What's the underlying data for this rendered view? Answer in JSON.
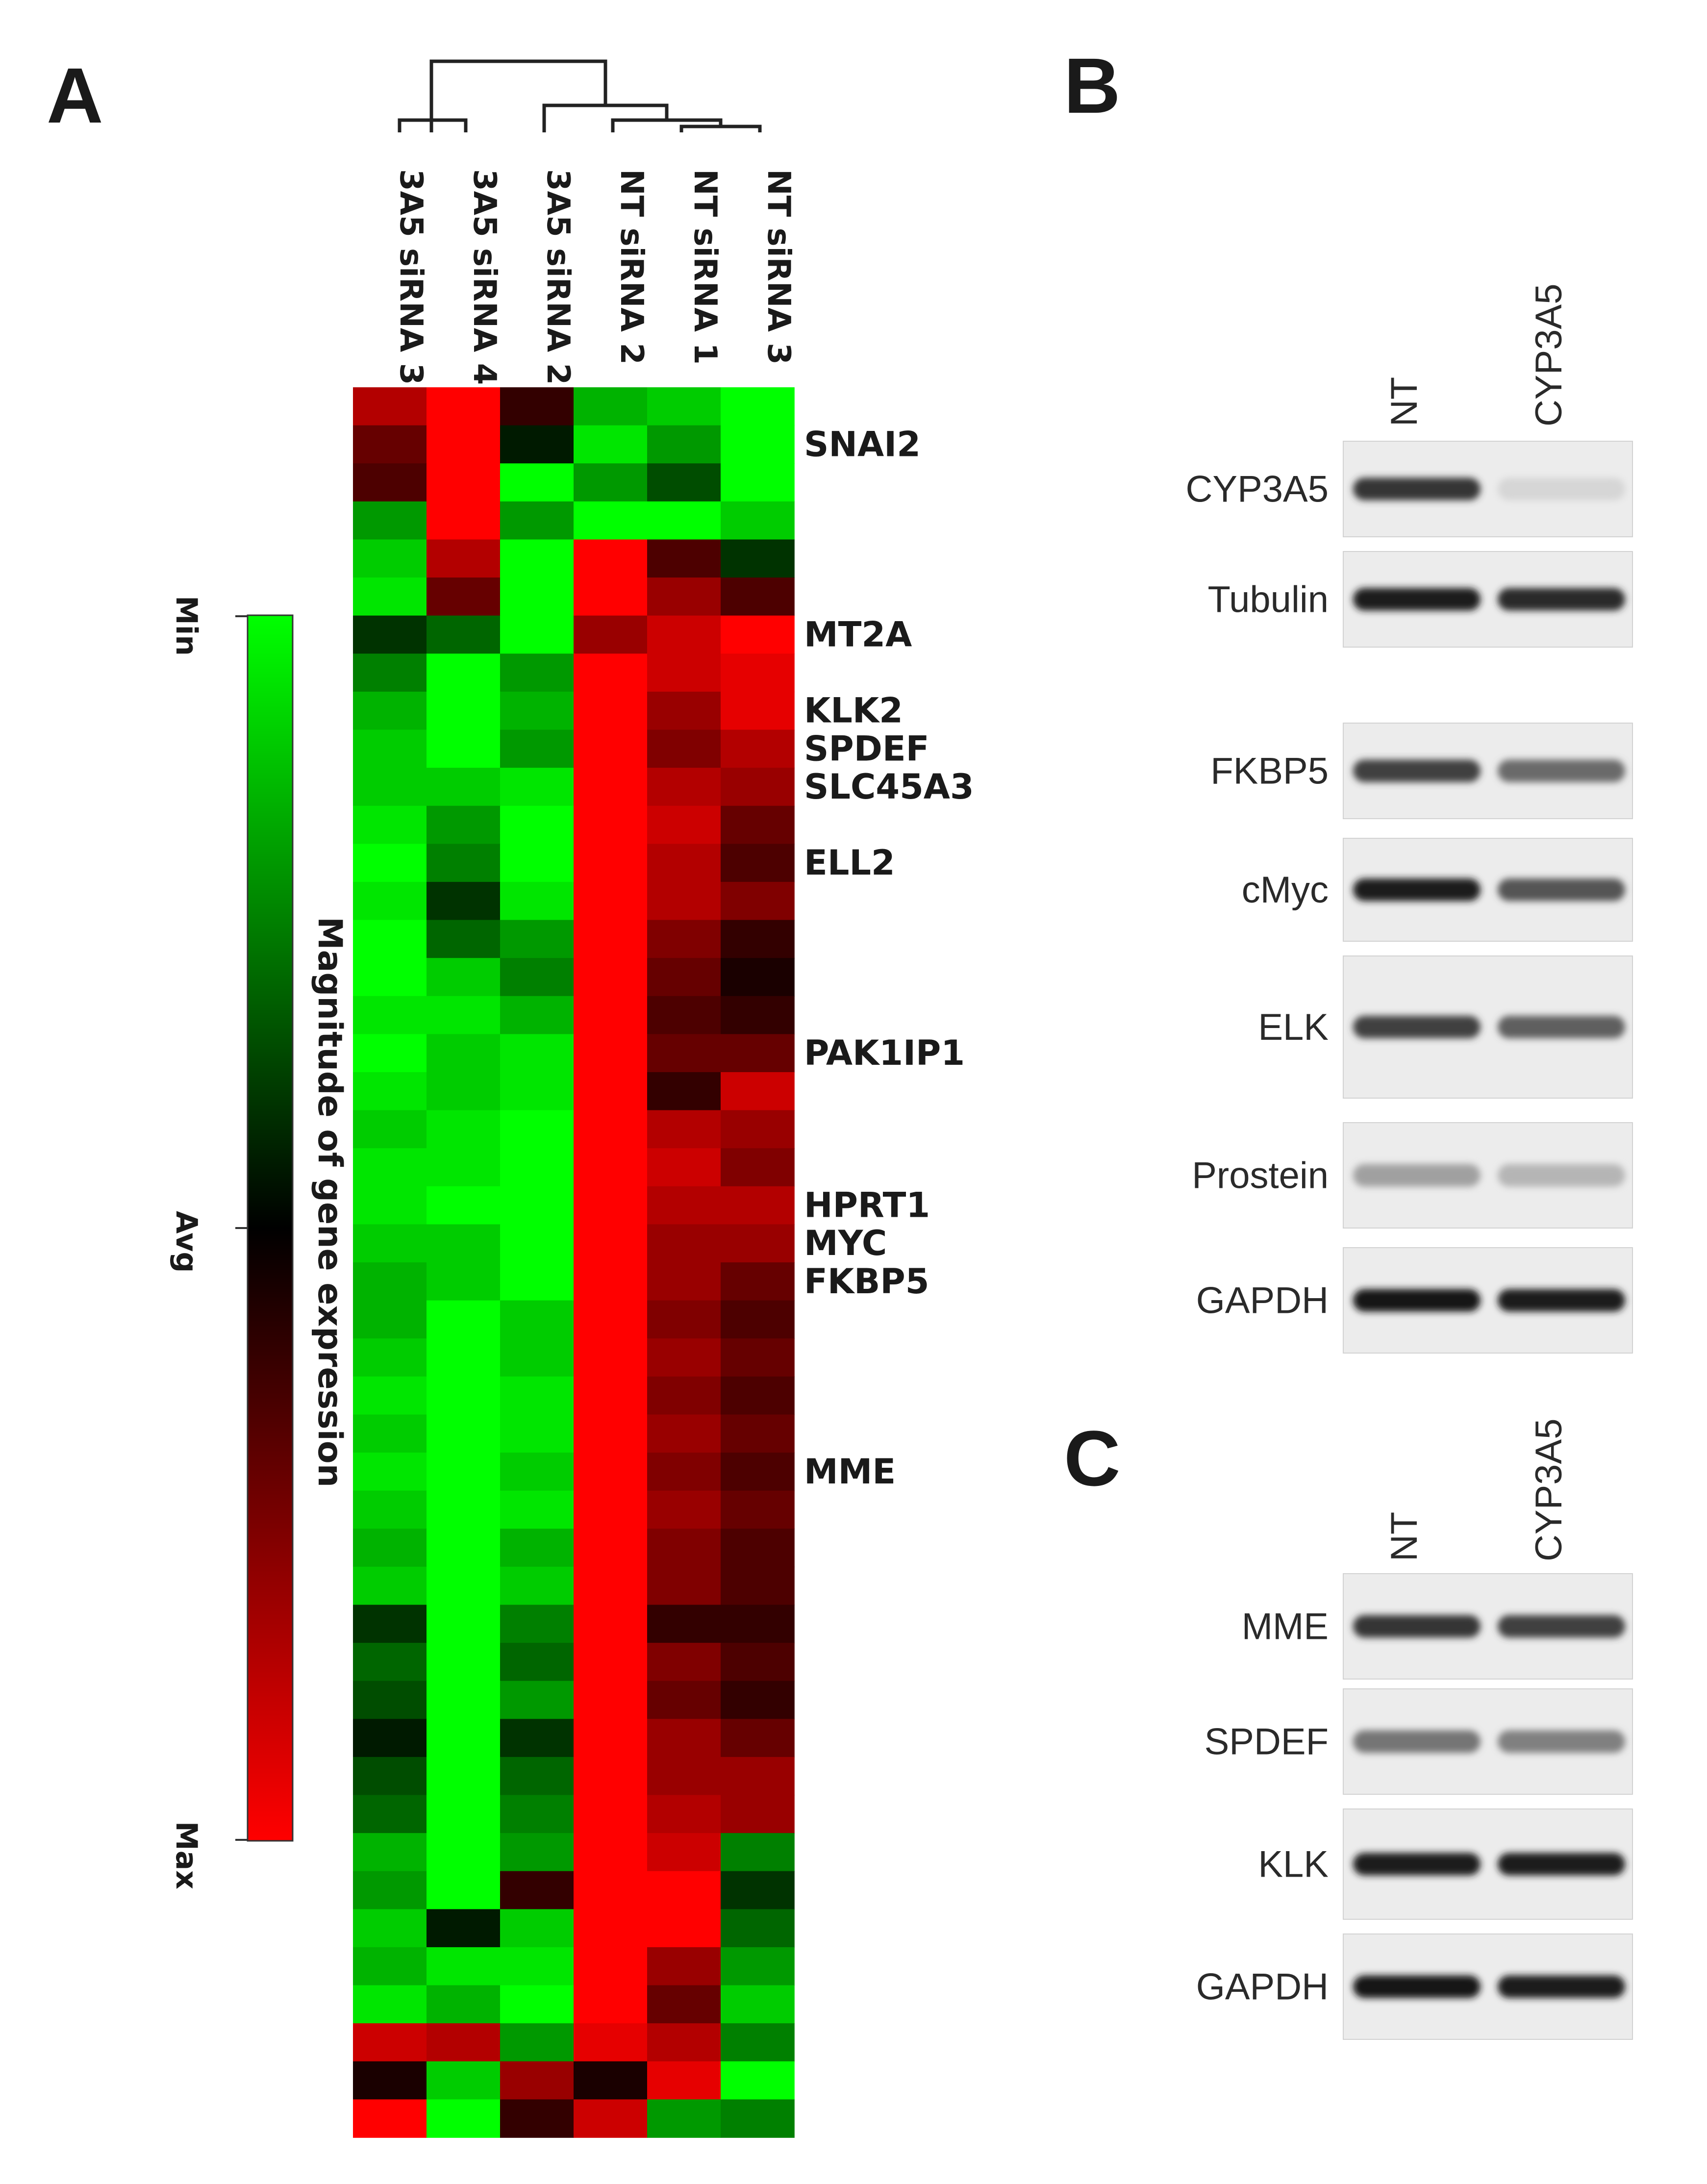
{
  "panels": {
    "a": "A",
    "b": "B",
    "c": "C"
  },
  "heatmap": {
    "samples": [
      "3A5 siRNA 3",
      "3A5 siRNA 4",
      "3A5 siRNA 2",
      "NT siRNA 2",
      "NT siRNA 1",
      "NT siRNA 3"
    ],
    "genes": [
      {
        "label": "SNAI2",
        "row": 1
      },
      {
        "label": "MT2A",
        "row": 6
      },
      {
        "label": "KLK2",
        "row": 8
      },
      {
        "label": "SPDEF",
        "row": 9
      },
      {
        "label": "SLC45A3",
        "row": 10
      },
      {
        "label": "ELL2",
        "row": 12
      },
      {
        "label": "PAK1IP1",
        "row": 17
      },
      {
        "label": "HPRT1",
        "row": 21
      },
      {
        "label": "MYC",
        "row": 22
      },
      {
        "label": "FKBP5",
        "row": 23
      },
      {
        "label": "MME",
        "row": 28
      }
    ],
    "colors": {
      "min": "#00ff00",
      "avg": "#000000",
      "max": "#ff0000"
    },
    "values_note": "",
    "rows": [
      [
        0.7,
        1.0,
        0.2,
        -0.7,
        -0.8,
        -1.0
      ],
      [
        0.4,
        1.0,
        -0.1,
        -0.9,
        -0.6,
        -1.0
      ],
      [
        0.3,
        1.0,
        -1.0,
        -0.6,
        -0.3,
        -1.0
      ],
      [
        -0.6,
        1.0,
        -0.6,
        -1.0,
        -1.0,
        -0.8
      ],
      [
        -0.8,
        0.7,
        -1.0,
        1.0,
        0.3,
        -0.2
      ],
      [
        -0.9,
        0.4,
        -1.0,
        1.0,
        0.6,
        0.3
      ],
      [
        -0.2,
        -0.4,
        -1.0,
        0.6,
        0.8,
        1.0
      ],
      [
        -0.5,
        -1.0,
        -0.6,
        1.0,
        0.8,
        0.9
      ],
      [
        -0.7,
        -1.0,
        -0.7,
        1.0,
        0.6,
        0.9
      ],
      [
        -0.8,
        -1.0,
        -0.6,
        1.0,
        0.5,
        0.7
      ],
      [
        -0.8,
        -0.8,
        -0.9,
        1.0,
        0.7,
        0.6
      ],
      [
        -0.9,
        -0.6,
        -1.0,
        1.0,
        0.8,
        0.4
      ],
      [
        -1.0,
        -0.5,
        -1.0,
        1.0,
        0.7,
        0.3
      ],
      [
        -0.9,
        -0.2,
        -0.9,
        1.0,
        0.7,
        0.5
      ],
      [
        -1.0,
        -0.4,
        -0.6,
        1.0,
        0.5,
        0.2
      ],
      [
        -1.0,
        -0.8,
        -0.5,
        1.0,
        0.4,
        0.1
      ],
      [
        -0.9,
        -0.9,
        -0.7,
        1.0,
        0.3,
        0.2
      ],
      [
        -1.0,
        -0.8,
        -0.9,
        1.0,
        0.4,
        0.4
      ],
      [
        -0.9,
        -0.8,
        -0.9,
        1.0,
        0.2,
        0.8
      ],
      [
        -0.8,
        -0.9,
        -1.0,
        1.0,
        0.7,
        0.6
      ],
      [
        -0.9,
        -0.9,
        -1.0,
        1.0,
        0.8,
        0.5
      ],
      [
        -0.9,
        -1.0,
        -1.0,
        1.0,
        0.7,
        0.7
      ],
      [
        -0.8,
        -0.8,
        -1.0,
        1.0,
        0.6,
        0.6
      ],
      [
        -0.7,
        -0.8,
        -1.0,
        1.0,
        0.6,
        0.4
      ],
      [
        -0.7,
        -1.0,
        -0.8,
        1.0,
        0.5,
        0.3
      ],
      [
        -0.8,
        -1.0,
        -0.8,
        1.0,
        0.6,
        0.4
      ],
      [
        -0.9,
        -1.0,
        -0.9,
        1.0,
        0.5,
        0.3
      ],
      [
        -0.8,
        -1.0,
        -0.9,
        1.0,
        0.6,
        0.4
      ],
      [
        -0.9,
        -1.0,
        -0.8,
        1.0,
        0.5,
        0.3
      ],
      [
        -0.8,
        -1.0,
        -0.9,
        1.0,
        0.6,
        0.4
      ],
      [
        -0.7,
        -1.0,
        -0.7,
        1.0,
        0.5,
        0.3
      ],
      [
        -0.8,
        -1.0,
        -0.8,
        1.0,
        0.5,
        0.3
      ],
      [
        -0.2,
        -1.0,
        -0.5,
        1.0,
        0.2,
        0.2
      ],
      [
        -0.4,
        -1.0,
        -0.4,
        1.0,
        0.5,
        0.3
      ],
      [
        -0.3,
        -1.0,
        -0.6,
        1.0,
        0.4,
        0.2
      ],
      [
        -0.1,
        -1.0,
        -0.2,
        1.0,
        0.6,
        0.4
      ],
      [
        -0.3,
        -1.0,
        -0.4,
        1.0,
        0.6,
        0.6
      ],
      [
        -0.4,
        -1.0,
        -0.5,
        1.0,
        0.7,
        0.6
      ],
      [
        -0.7,
        -1.0,
        -0.6,
        1.0,
        0.8,
        -0.5
      ],
      [
        -0.6,
        -1.0,
        0.2,
        1.0,
        1.0,
        -0.2
      ],
      [
        -0.8,
        -0.1,
        -0.8,
        1.0,
        1.0,
        -0.4
      ],
      [
        -0.7,
        -0.9,
        -0.9,
        1.0,
        0.6,
        -0.6
      ],
      [
        -0.9,
        -0.7,
        -1.0,
        1.0,
        0.4,
        -0.8
      ],
      [
        0.8,
        0.7,
        -0.6,
        0.9,
        0.7,
        -0.5
      ],
      [
        0.1,
        -0.8,
        0.6,
        0.1,
        0.9,
        -1.0
      ],
      [
        1.0,
        -1.0,
        0.2,
        0.8,
        -0.6,
        -0.5
      ]
    ]
  },
  "scale": {
    "title": "Magnitude of gene expression",
    "min_label": "Min",
    "avg_label": "Avg",
    "max_label": "Max"
  },
  "blot_b": {
    "lanes": [
      "NT",
      "CYP3A5"
    ],
    "rows": [
      {
        "label": "CYP3A5",
        "bands": [
          0.85,
          0.1
        ]
      },
      {
        "label": "Tubulin",
        "bands": [
          0.95,
          0.9
        ]
      },
      {
        "label": "FKBP5",
        "bands": [
          0.8,
          0.6
        ]
      },
      {
        "label": "cMyc",
        "bands": [
          0.95,
          0.7
        ]
      },
      {
        "label": "ELK",
        "bands": [
          0.8,
          0.65
        ]
      },
      {
        "label": "Prostein",
        "bands": [
          0.35,
          0.25
        ]
      },
      {
        "label": "GAPDH",
        "bands": [
          1.0,
          0.95
        ]
      }
    ]
  },
  "blot_c": {
    "lanes": [
      "NT",
      "CYP3A5"
    ],
    "rows": [
      {
        "label": "MME",
        "bands": [
          0.85,
          0.8
        ]
      },
      {
        "label": "SPDEF",
        "bands": [
          0.55,
          0.5
        ]
      },
      {
        "label": "KLK",
        "bands": [
          0.95,
          0.95
        ]
      },
      {
        "label": "GAPDH",
        "bands": [
          1.0,
          0.95
        ]
      }
    ]
  }
}
